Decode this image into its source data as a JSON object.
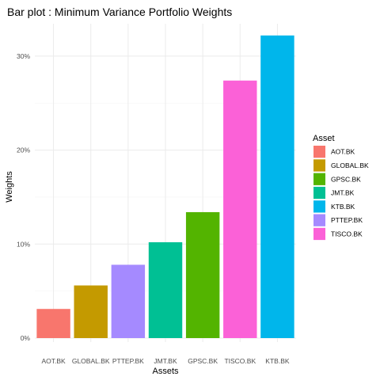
{
  "chart_data": {
    "type": "bar",
    "title": "Bar plot : Minimum Variance Portfolio Weights",
    "xlabel": "Assets",
    "ylabel": "Weights",
    "categories": [
      "AOT.BK",
      "GLOBAL.BK",
      "PTTEP.BK",
      "JMT.BK",
      "GPSC.BK",
      "TISCO.BK",
      "KTB.BK"
    ],
    "values": [
      0.031,
      0.056,
      0.078,
      0.102,
      0.134,
      0.274,
      0.322
    ],
    "ylim": [
      0,
      0.34
    ],
    "yticks": [
      0,
      0.1,
      0.2,
      0.3
    ],
    "ytick_labels": [
      "0%",
      "10%",
      "20%",
      "30%"
    ],
    "grid": true,
    "legend": {
      "title": "Asset",
      "placement": "right",
      "entries": [
        "AOT.BK",
        "GLOBAL.BK",
        "GPSC.BK",
        "JMT.BK",
        "KTB.BK",
        "PTTEP.BK",
        "TISCO.BK"
      ]
    },
    "colors": {
      "AOT.BK": "#F8766D",
      "GLOBAL.BK": "#C49A00",
      "GPSC.BK": "#53B400",
      "JMT.BK": "#00C094",
      "KTB.BK": "#00B6EB",
      "PTTEP.BK": "#A58AFF",
      "TISCO.BK": "#FB61D7"
    }
  }
}
